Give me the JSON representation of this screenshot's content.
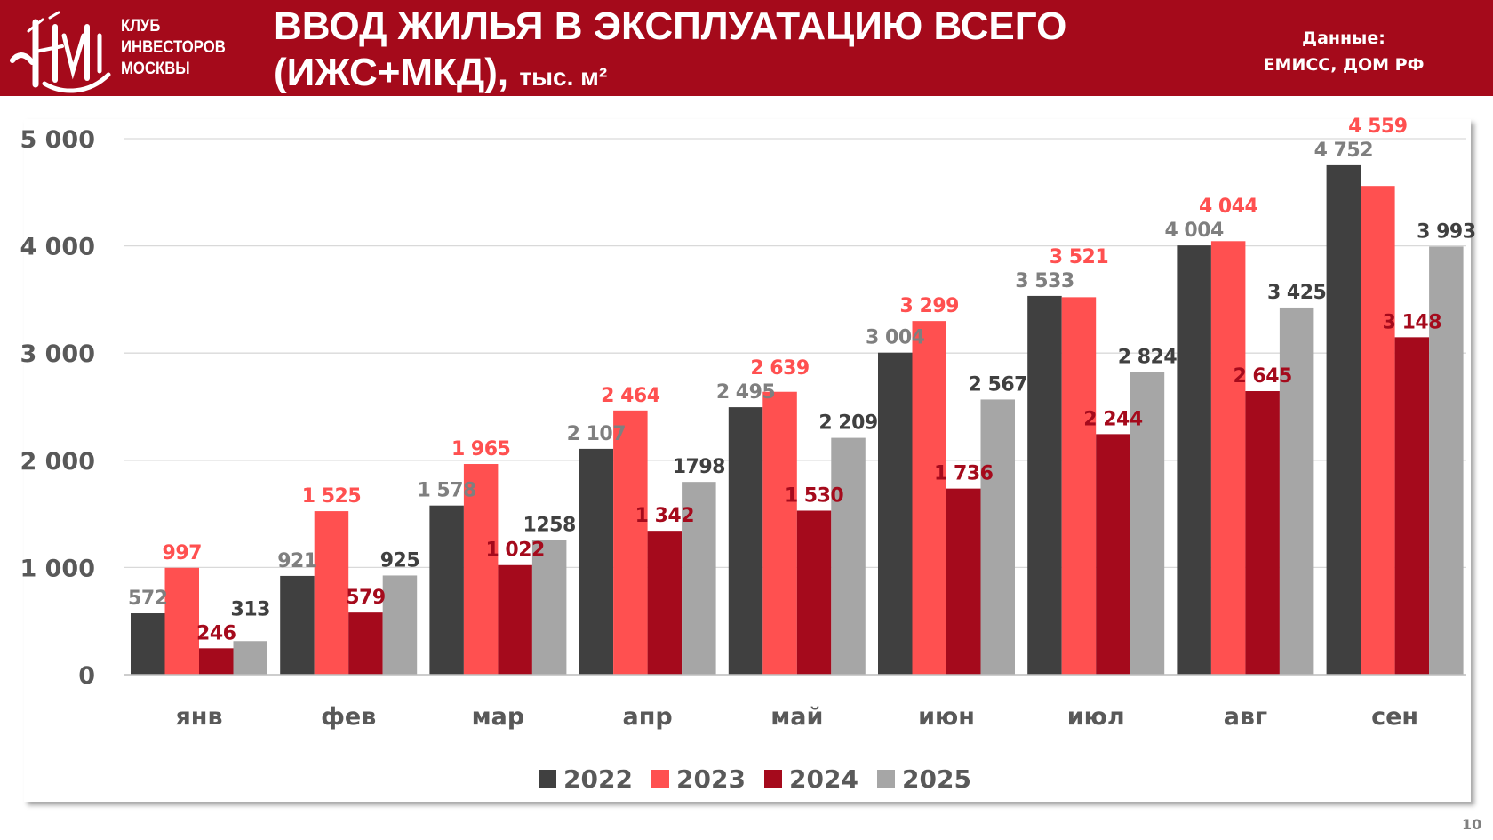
{
  "header": {
    "logo_text": [
      "КЛУБ",
      "ИНВЕСТОРОВ",
      "МОСКВЫ"
    ],
    "title_line1": "ВВОД ЖИЛЬЯ В ЭКСПЛУАТАЦИЮ ВСЕГО",
    "title_line2": "(ИЖС+МКД),",
    "title_unit": "тыс. м²",
    "source_label": "Данные:",
    "source_value": "ЕМИСС, ДОМ РФ",
    "color": "#a50a1b"
  },
  "page_number": "10",
  "chart_data": {
    "type": "bar",
    "title": "",
    "xlabel": "",
    "ylabel": "",
    "ylim": [
      0,
      5000
    ],
    "yticks": [
      0,
      1000,
      2000,
      3000,
      4000,
      5000
    ],
    "ytick_labels": [
      "0",
      "1 000",
      "2 000",
      "3 000",
      "4 000",
      "5 000"
    ],
    "grid": true,
    "legend": "bottom",
    "categories": [
      "янв",
      "фев",
      "мар",
      "апр",
      "май",
      "июн",
      "июл",
      "авг",
      "сен"
    ],
    "series": [
      {
        "name": "2022",
        "color": "#404040",
        "label_color": "#7f7f7f",
        "values": [
          572,
          921,
          1578,
          2107,
          2495,
          3004,
          3533,
          4004,
          4752
        ],
        "labels": [
          "572",
          "921",
          "1 578",
          "2 107",
          "2 495",
          "3 004",
          "3 533",
          "4 004",
          "4 752"
        ]
      },
      {
        "name": "2023",
        "color": "#ff5050",
        "label_color": "#ff5050",
        "values": [
          997,
          1525,
          1965,
          2464,
          2639,
          3299,
          3521,
          4044,
          4559
        ],
        "labels": [
          "997",
          "1 525",
          "1 965",
          "2 464",
          "2 639",
          "3 299",
          "3 521",
          "4 044",
          "4 559"
        ]
      },
      {
        "name": "2024",
        "color": "#a50a1c",
        "label_color": "#a50a1c",
        "values": [
          246,
          579,
          1022,
          1342,
          1530,
          1736,
          2244,
          2645,
          3148
        ],
        "labels": [
          "246",
          "579",
          "1 022",
          "1 342",
          "1 530",
          "1 736",
          "2 244",
          "2 645",
          "3 148"
        ]
      },
      {
        "name": "2025",
        "color": "#a6a6a6",
        "label_color": "#404040",
        "values": [
          313,
          925,
          1258,
          1798,
          2209,
          2567,
          2824,
          3425,
          3993
        ],
        "labels": [
          "313",
          "925",
          "1258",
          "1798",
          "2 209",
          "2 567",
          "2 824",
          "3 425",
          "3 993"
        ]
      }
    ]
  }
}
